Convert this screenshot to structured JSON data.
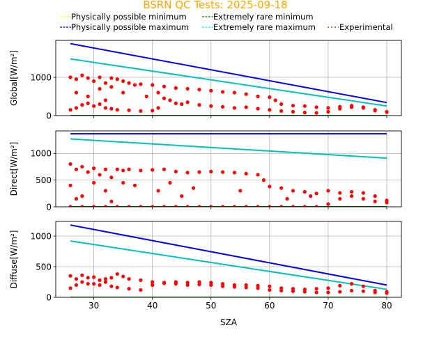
{
  "chart_data": {
    "type": "scatter",
    "title": "BSRN QC Tests: 2025-09-18",
    "title_color": "#FFA500",
    "xlabel": "SZA",
    "xlim": [
      23.5,
      82.5
    ],
    "xticks": [
      30,
      40,
      50,
      60,
      70,
      80
    ],
    "grid": true,
    "legend_placement": "top",
    "legend": [
      {
        "label": "Physically possible minimum",
        "color": "#FFFF00",
        "style": "dashed"
      },
      {
        "label": "Extremely rare minimum",
        "color": "#008000",
        "style": "dashed"
      },
      {
        "label": "Physically possible maximum",
        "color": "#0000FF",
        "style": "dashed"
      },
      {
        "label": "Extremely rare maximum",
        "color": "#00FFFF",
        "style": "dashed"
      },
      {
        "label": "Experimental",
        "color": "#FF0000",
        "style": "dotted"
      }
    ],
    "panels": [
      {
        "ylabel": "Global[W/m²]",
        "ylim": [
          0,
          1964
        ],
        "yticks": [
          0,
          1000
        ],
        "lines": {
          "phys_min": [
            [
              26,
              -4
            ],
            [
              80,
              -4
            ]
          ],
          "rare_min": [
            [
              26,
              0
            ],
            [
              80,
              0
            ]
          ],
          "phys_max": [
            [
              26,
              1880
            ],
            [
              80,
              340
            ]
          ],
          "rare_max": [
            [
              26,
              1480
            ],
            [
              80,
              250
            ]
          ]
        },
        "experimental": [
          [
            26,
            1000
          ],
          [
            27,
            950
          ],
          [
            28,
            1050
          ],
          [
            29,
            980
          ],
          [
            30,
            900
          ],
          [
            31,
            1000
          ],
          [
            32,
            850
          ],
          [
            33,
            980
          ],
          [
            34,
            950
          ],
          [
            35,
            900
          ],
          [
            36,
            850
          ],
          [
            38,
            820
          ],
          [
            40,
            800
          ],
          [
            42,
            760
          ],
          [
            44,
            720
          ],
          [
            46,
            700
          ],
          [
            48,
            680
          ],
          [
            50,
            650
          ],
          [
            52,
            620
          ],
          [
            54,
            600
          ],
          [
            56,
            560
          ],
          [
            58,
            500
          ],
          [
            60,
            480
          ],
          [
            61,
            400
          ],
          [
            62,
            300
          ],
          [
            64,
            260
          ],
          [
            66,
            250
          ],
          [
            68,
            220
          ],
          [
            70,
            200
          ],
          [
            72,
            230
          ],
          [
            74,
            260
          ],
          [
            76,
            220
          ],
          [
            78,
            150
          ],
          [
            80,
            100
          ],
          [
            26,
            150
          ],
          [
            27,
            200
          ],
          [
            28,
            280
          ],
          [
            29,
            320
          ],
          [
            30,
            250
          ],
          [
            31,
            300
          ],
          [
            32,
            200
          ],
          [
            33,
            180
          ],
          [
            34,
            150
          ],
          [
            36,
            140
          ],
          [
            38,
            120
          ],
          [
            40,
            130
          ],
          [
            41,
            200
          ],
          [
            42,
            450
          ],
          [
            43,
            400
          ],
          [
            44,
            320
          ],
          [
            45,
            300
          ],
          [
            46,
            350
          ],
          [
            48,
            280
          ],
          [
            50,
            250
          ],
          [
            52,
            230
          ],
          [
            54,
            200
          ],
          [
            56,
            220
          ],
          [
            58,
            180
          ],
          [
            60,
            150
          ],
          [
            62,
            120
          ],
          [
            64,
            100
          ],
          [
            66,
            80
          ],
          [
            68,
            70
          ],
          [
            70,
            100
          ],
          [
            72,
            180
          ],
          [
            74,
            220
          ],
          [
            76,
            200
          ],
          [
            78,
            130
          ],
          [
            80,
            90
          ],
          [
            27,
            600
          ],
          [
            29,
            500
          ],
          [
            31,
            700
          ],
          [
            32,
            400
          ],
          [
            33,
            750
          ],
          [
            35,
            600
          ],
          [
            37,
            800
          ],
          [
            39,
            500
          ],
          [
            41,
            600
          ]
        ]
      },
      {
        "ylabel": "Direct[W/m²]",
        "ylim": [
          0,
          1420
        ],
        "yticks": [
          0,
          500,
          1000
        ],
        "lines": {
          "phys_min": [
            [
              26,
              -4
            ],
            [
              80,
              -4
            ]
          ],
          "rare_min": [
            [
              26,
              0
            ],
            [
              80,
              0
            ]
          ],
          "phys_max": [
            [
              26,
              1367
            ],
            [
              80,
              1367
            ]
          ],
          "rare_max": [
            [
              26,
              1270
            ],
            [
              80,
              910
            ]
          ]
        },
        "experimental": [
          [
            26,
            800
          ],
          [
            27,
            700
          ],
          [
            28,
            750
          ],
          [
            29,
            650
          ],
          [
            30,
            720
          ],
          [
            31,
            600
          ],
          [
            32,
            700
          ],
          [
            33,
            550
          ],
          [
            34,
            700
          ],
          [
            35,
            680
          ],
          [
            36,
            700
          ],
          [
            38,
            680
          ],
          [
            40,
            690
          ],
          [
            42,
            700
          ],
          [
            44,
            660
          ],
          [
            46,
            640
          ],
          [
            48,
            650
          ],
          [
            50,
            660
          ],
          [
            52,
            650
          ],
          [
            54,
            640
          ],
          [
            56,
            620
          ],
          [
            58,
            600
          ],
          [
            59,
            500
          ],
          [
            60,
            380
          ],
          [
            62,
            350
          ],
          [
            64,
            300
          ],
          [
            66,
            280
          ],
          [
            68,
            250
          ],
          [
            70,
            300
          ],
          [
            72,
            260
          ],
          [
            74,
            280
          ],
          [
            76,
            260
          ],
          [
            78,
            200
          ],
          [
            80,
            120
          ],
          [
            26,
            0
          ],
          [
            28,
            0
          ],
          [
            30,
            0
          ],
          [
            32,
            0
          ],
          [
            34,
            0
          ],
          [
            36,
            0
          ],
          [
            38,
            0
          ],
          [
            40,
            0
          ],
          [
            42,
            0
          ],
          [
            44,
            0
          ],
          [
            46,
            0
          ],
          [
            48,
            0
          ],
          [
            50,
            0
          ],
          [
            52,
            0
          ],
          [
            54,
            0
          ],
          [
            56,
            0
          ],
          [
            58,
            0
          ],
          [
            60,
            0
          ],
          [
            62,
            0
          ],
          [
            64,
            0
          ],
          [
            66,
            0
          ],
          [
            68,
            0
          ],
          [
            70,
            50
          ],
          [
            72,
            150
          ],
          [
            74,
            200
          ],
          [
            76,
            150
          ],
          [
            78,
            100
          ],
          [
            80,
            80
          ],
          [
            26,
            400
          ],
          [
            27,
            150
          ],
          [
            28,
            200
          ],
          [
            30,
            450
          ],
          [
            32,
            300
          ],
          [
            33,
            100
          ],
          [
            35,
            450
          ],
          [
            37,
            400
          ],
          [
            41,
            300
          ],
          [
            43,
            450
          ],
          [
            45,
            200
          ],
          [
            47,
            350
          ],
          [
            55,
            300
          ],
          [
            63,
            150
          ],
          [
            67,
            200
          ]
        ]
      },
      {
        "ylabel": "Diffuse[W/m²]",
        "ylim": [
          0,
          1239
        ],
        "yticks": [
          0,
          500,
          1000
        ],
        "lines": {
          "phys_min": [
            [
              26,
              -4
            ],
            [
              80,
              -4
            ]
          ],
          "rare_min": [
            [
              26,
              0
            ],
            [
              80,
              0
            ]
          ],
          "phys_max": [
            [
              26,
              1180
            ],
            [
              80,
              200
            ]
          ],
          "rare_max": [
            [
              26,
              920
            ],
            [
              80,
              130
            ]
          ]
        },
        "experimental": [
          [
            26,
            350
          ],
          [
            27,
            300
          ],
          [
            28,
            360
          ],
          [
            29,
            320
          ],
          [
            30,
            330
          ],
          [
            31,
            280
          ],
          [
            32,
            300
          ],
          [
            33,
            320
          ],
          [
            34,
            380
          ],
          [
            35,
            340
          ],
          [
            36,
            300
          ],
          [
            38,
            280
          ],
          [
            40,
            250
          ],
          [
            42,
            240
          ],
          [
            44,
            250
          ],
          [
            46,
            240
          ],
          [
            48,
            250
          ],
          [
            50,
            240
          ],
          [
            52,
            220
          ],
          [
            54,
            200
          ],
          [
            56,
            200
          ],
          [
            58,
            190
          ],
          [
            60,
            180
          ],
          [
            62,
            150
          ],
          [
            64,
            140
          ],
          [
            66,
            130
          ],
          [
            68,
            140
          ],
          [
            70,
            150
          ],
          [
            72,
            190
          ],
          [
            74,
            220
          ],
          [
            76,
            180
          ],
          [
            78,
            110
          ],
          [
            80,
            90
          ],
          [
            26,
            150
          ],
          [
            27,
            200
          ],
          [
            28,
            250
          ],
          [
            29,
            220
          ],
          [
            30,
            220
          ],
          [
            31,
            200
          ],
          [
            32,
            250
          ],
          [
            33,
            180
          ],
          [
            34,
            160
          ],
          [
            36,
            140
          ],
          [
            38,
            120
          ],
          [
            40,
            200
          ],
          [
            42,
            230
          ],
          [
            44,
            220
          ],
          [
            46,
            200
          ],
          [
            48,
            210
          ],
          [
            50,
            200
          ],
          [
            52,
            180
          ],
          [
            54,
            170
          ],
          [
            56,
            160
          ],
          [
            58,
            150
          ],
          [
            60,
            120
          ],
          [
            62,
            110
          ],
          [
            64,
            100
          ],
          [
            66,
            90
          ],
          [
            68,
            80
          ],
          [
            70,
            80
          ],
          [
            72,
            90
          ],
          [
            74,
            110
          ],
          [
            76,
            100
          ],
          [
            78,
            80
          ],
          [
            80,
            70
          ]
        ]
      }
    ]
  }
}
